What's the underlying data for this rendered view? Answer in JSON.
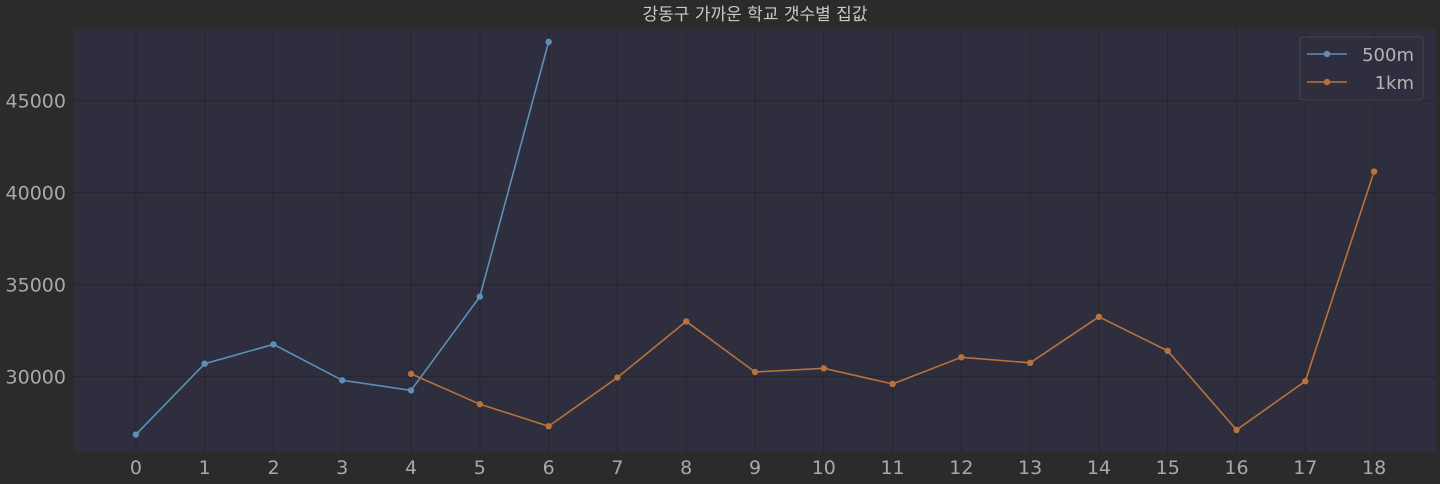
{
  "chart_data": {
    "type": "line",
    "title": "강동구 가까운 학교 갯수별 집값",
    "xlabel": "",
    "ylabel": "",
    "x_ticks": [
      0,
      1,
      2,
      3,
      4,
      5,
      6,
      7,
      8,
      9,
      10,
      11,
      12,
      13,
      14,
      15,
      16,
      17,
      18
    ],
    "y_ticks": [
      30000,
      35000,
      40000,
      45000
    ],
    "xlim": [
      -0.9,
      18.9
    ],
    "ylim": [
      25900,
      48900
    ],
    "grid": true,
    "legend_position": "top-right",
    "series": [
      {
        "name": "500m",
        "color": "#5f8fb8",
        "x": [
          0,
          1,
          2,
          3,
          4,
          5,
          6
        ],
        "values": [
          26850,
          30700,
          31750,
          29800,
          29250,
          34350,
          48200
        ]
      },
      {
        "name": "1km",
        "color": "#b8733a",
        "x": [
          4,
          5,
          6,
          7,
          8,
          9,
          10,
          11,
          12,
          13,
          14,
          15,
          16,
          17,
          18
        ],
        "values": [
          30150,
          28500,
          27300,
          29950,
          33000,
          30250,
          30450,
          29600,
          31050,
          30750,
          33250,
          31400,
          27100,
          29750,
          41150
        ]
      }
    ]
  }
}
